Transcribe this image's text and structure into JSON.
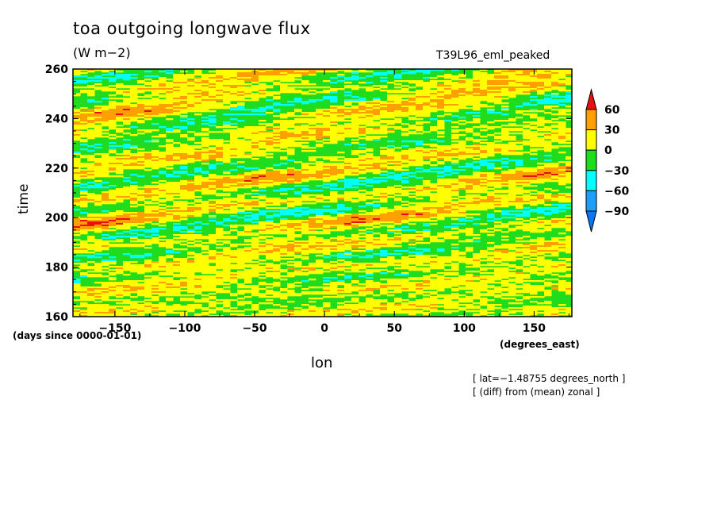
{
  "chart_data": {
    "type": "heatmap",
    "title": "toa outgoing longwave flux",
    "units": "(W m−2)",
    "run_label": "T39L96_eml_peaked",
    "xlabel": "lon",
    "x_units": "(degrees_east)",
    "ylabel": "time",
    "y_units": "(days since 0000-01-01)",
    "xlim": [
      -180,
      177
    ],
    "ylim": [
      160,
      260
    ],
    "x_ticks": [
      -150,
      -100,
      -50,
      0,
      50,
      100,
      150
    ],
    "y_ticks": [
      160,
      180,
      200,
      220,
      240,
      260
    ],
    "x_tick_labels": [
      "−150",
      "−100",
      "−50",
      "0",
      "50",
      "100",
      "150"
    ],
    "y_tick_labels": [
      "160",
      "180",
      "200",
      "220",
      "240",
      "260"
    ],
    "colorbar": {
      "levels": [
        -90,
        -60,
        -30,
        0,
        30,
        60
      ],
      "level_labels": [
        "−90",
        "−60",
        "−30",
        "0",
        "30",
        "60"
      ],
      "colors": [
        "#0a78f0",
        "#1e9ff5",
        "#00ffff",
        "#1fdc1f",
        "#ffff00",
        "#ffa000",
        "#e81010"
      ],
      "extend": "both"
    },
    "grid": false
  },
  "annotations": {
    "lat_note": "[ lat=−1.48755 degrees_north ]",
    "diff_note": "[ (diff) from (mean) zonal ]"
  }
}
